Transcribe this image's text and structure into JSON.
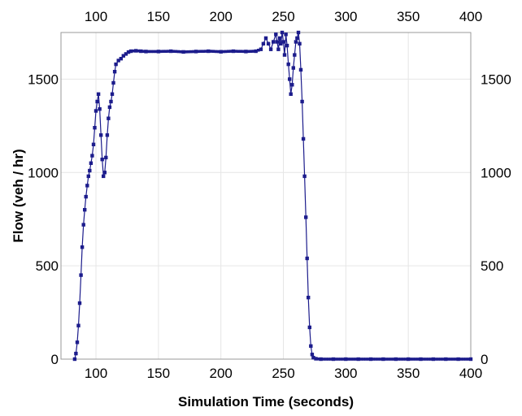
{
  "chart_data": {
    "type": "scatter",
    "xlabel": "Simulation Time (seconds)",
    "ylabel": "Flow (veh / hr)",
    "xlim": [
      72,
      400
    ],
    "ylim": [
      0,
      1750
    ],
    "x_ticks": [
      "100",
      "150",
      "200",
      "250",
      "300",
      "350",
      "400"
    ],
    "y_ticks": [
      "0",
      "500",
      "1000",
      "1500"
    ],
    "grid": true,
    "secondary_axes": "top and right mirror bottom and left",
    "marker": "square",
    "color": "#1c1c8c",
    "series": [
      {
        "points": [
          [
            83,
            0
          ],
          [
            84,
            30
          ],
          [
            85,
            90
          ],
          [
            86,
            180
          ],
          [
            87,
            300
          ],
          [
            88,
            450
          ],
          [
            89,
            600
          ],
          [
            90,
            720
          ],
          [
            91,
            800
          ],
          [
            92,
            870
          ],
          [
            93,
            930
          ],
          [
            94,
            980
          ],
          [
            95,
            1010
          ],
          [
            96,
            1050
          ],
          [
            97,
            1090
          ],
          [
            98,
            1150
          ],
          [
            99,
            1240
          ],
          [
            100,
            1330
          ],
          [
            101,
            1380
          ],
          [
            102,
            1420
          ],
          [
            103,
            1340
          ],
          [
            104,
            1200
          ],
          [
            105,
            1070
          ],
          [
            106,
            980
          ],
          [
            107,
            1000
          ],
          [
            108,
            1080
          ],
          [
            109,
            1200
          ],
          [
            110,
            1290
          ],
          [
            111,
            1350
          ],
          [
            112,
            1380
          ],
          [
            113,
            1420
          ],
          [
            114,
            1480
          ],
          [
            115,
            1540
          ],
          [
            116,
            1580
          ],
          [
            118,
            1600
          ],
          [
            120,
            1610
          ],
          [
            122,
            1625
          ],
          [
            124,
            1635
          ],
          [
            126,
            1645
          ],
          [
            128,
            1650
          ],
          [
            132,
            1652
          ],
          [
            136,
            1650
          ],
          [
            140,
            1648
          ],
          [
            150,
            1648
          ],
          [
            160,
            1650
          ],
          [
            170,
            1646
          ],
          [
            180,
            1648
          ],
          [
            190,
            1650
          ],
          [
            200,
            1647
          ],
          [
            210,
            1650
          ],
          [
            220,
            1648
          ],
          [
            228,
            1650
          ],
          [
            232,
            1660
          ],
          [
            234,
            1690
          ],
          [
            236,
            1720
          ],
          [
            238,
            1690
          ],
          [
            240,
            1660
          ],
          [
            242,
            1700
          ],
          [
            244,
            1740
          ],
          [
            245,
            1700
          ],
          [
            246,
            1660
          ],
          [
            247,
            1720
          ],
          [
            248,
            1690
          ],
          [
            249,
            1750
          ],
          [
            250,
            1700
          ],
          [
            251,
            1630
          ],
          [
            252,
            1740
          ],
          [
            253,
            1680
          ],
          [
            254,
            1580
          ],
          [
            255,
            1500
          ],
          [
            256,
            1420
          ],
          [
            257,
            1470
          ],
          [
            258,
            1560
          ],
          [
            259,
            1630
          ],
          [
            260,
            1700
          ],
          [
            261,
            1720
          ],
          [
            262,
            1750
          ],
          [
            263,
            1690
          ],
          [
            264,
            1550
          ],
          [
            265,
            1380
          ],
          [
            266,
            1180
          ],
          [
            267,
            980
          ],
          [
            268,
            760
          ],
          [
            269,
            540
          ],
          [
            270,
            330
          ],
          [
            271,
            170
          ],
          [
            272,
            70
          ],
          [
            273,
            25
          ],
          [
            274,
            8
          ],
          [
            276,
            2
          ],
          [
            280,
            0
          ],
          [
            290,
            0
          ],
          [
            300,
            0
          ],
          [
            310,
            0
          ],
          [
            320,
            0
          ],
          [
            330,
            0
          ],
          [
            340,
            0
          ],
          [
            350,
            0
          ],
          [
            360,
            0
          ],
          [
            370,
            0
          ],
          [
            380,
            0
          ],
          [
            390,
            0
          ],
          [
            400,
            0
          ]
        ]
      }
    ]
  }
}
